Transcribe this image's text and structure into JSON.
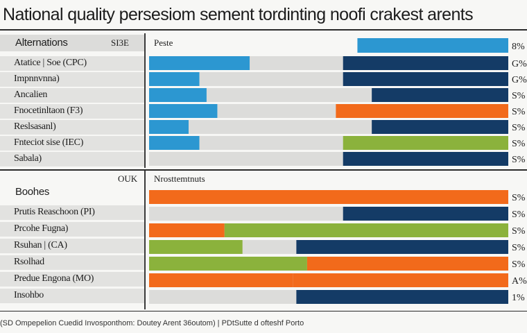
{
  "chart_data": {
    "type": "bar",
    "title": "National quality persesiom sement tordinting noofi crakest arents",
    "footer": "(SD Ompepelion Cuedid Invosponthom: Doutey Arent 36outom) | PDtSutte d ofteshf Porto",
    "colors": {
      "blue": "#2c97d1",
      "navy": "#143b66",
      "orange": "#f26a1b",
      "green": "#8bb23c",
      "gray": "#dcdcda"
    },
    "groups": [
      {
        "name": "Alternations",
        "header_code": "SI3E",
        "column_header": "Peste",
        "header_bar": {
          "start": 0.58,
          "end": 1.0,
          "color": "blue",
          "value_label": "8%"
        },
        "rows": [
          {
            "label": "Atatice | Soe (CPC)",
            "segments": [
              {
                "start": 0,
                "end": 0.28,
                "color": "blue"
              },
              {
                "start": 0.54,
                "end": 1.0,
                "color": "navy"
              }
            ],
            "value_label": "G%"
          },
          {
            "label": "Impnnvnna)",
            "segments": [
              {
                "start": 0,
                "end": 0.14,
                "color": "blue"
              },
              {
                "start": 0.54,
                "end": 1.0,
                "color": "navy"
              }
            ],
            "value_label": "G%"
          },
          {
            "label": "Ancalien",
            "segments": [
              {
                "start": 0,
                "end": 0.16,
                "color": "blue"
              },
              {
                "start": 0.62,
                "end": 1.0,
                "color": "navy"
              }
            ],
            "value_label": "S%"
          },
          {
            "label": "Fnocetinltaon (F3)",
            "segments": [
              {
                "start": 0,
                "end": 0.19,
                "color": "blue"
              },
              {
                "start": 0.52,
                "end": 1.0,
                "color": "orange"
              }
            ],
            "value_label": "S%"
          },
          {
            "label": "Reslsasanl)",
            "segments": [
              {
                "start": 0,
                "end": 0.11,
                "color": "blue"
              },
              {
                "start": 0.62,
                "end": 1.0,
                "color": "navy"
              }
            ],
            "value_label": "S%"
          },
          {
            "label": "Fnteciot sise (IEC)",
            "segments": [
              {
                "start": 0,
                "end": 0.14,
                "color": "blue"
              },
              {
                "start": 0.54,
                "end": 1.0,
                "color": "green"
              }
            ],
            "value_label": "S%"
          },
          {
            "label": "Sabala)",
            "segments": [
              {
                "start": 0.54,
                "end": 1.0,
                "color": "navy"
              }
            ],
            "value_label": "S%"
          }
        ]
      },
      {
        "name": "Boohes",
        "header_code": "OUK",
        "column_header": "Nrosttemtnuts",
        "header_bar": null,
        "rows": [
          {
            "label": "",
            "segments": [
              {
                "start": 0,
                "end": 1.0,
                "color": "orange"
              }
            ],
            "value_label": "S%"
          },
          {
            "label": "Prutis Reaschoon (PI)",
            "segments": [
              {
                "start": 0.54,
                "end": 1.0,
                "color": "navy"
              }
            ],
            "value_label": "S%"
          },
          {
            "label": "Prcohe Fugna)",
            "segments": [
              {
                "start": 0,
                "end": 0.21,
                "color": "orange"
              },
              {
                "start": 0.21,
                "end": 1.0,
                "color": "green"
              }
            ],
            "value_label": "S%"
          },
          {
            "label": "Rsuhan | (CA)",
            "segments": [
              {
                "start": 0,
                "end": 0.26,
                "color": "green"
              },
              {
                "start": 0.41,
                "end": 1.0,
                "color": "navy"
              }
            ],
            "value_label": "S%"
          },
          {
            "label": "Rsolhad",
            "segments": [
              {
                "start": 0,
                "end": 0.44,
                "color": "green"
              },
              {
                "start": 0.44,
                "end": 1.0,
                "color": "orange"
              }
            ],
            "value_label": "S%"
          },
          {
            "label": "Predue Engona (MO)",
            "segments": [
              {
                "start": 0,
                "end": 0.4,
                "color": "orange"
              },
              {
                "start": 0.4,
                "end": 1.0,
                "color": "orange"
              }
            ],
            "value_label": "A%"
          },
          {
            "label": "Insohbo",
            "segments": [
              {
                "start": 0.41,
                "end": 1.0,
                "color": "navy"
              }
            ],
            "value_label": "1%"
          }
        ]
      }
    ]
  }
}
